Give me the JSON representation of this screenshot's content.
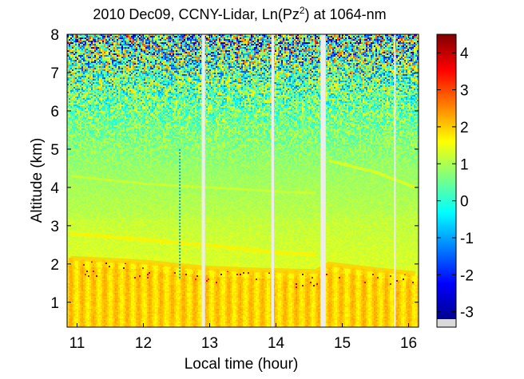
{
  "chart_data": {
    "type": "heatmap",
    "title_main": "2010 Dec09, CCNY-Lidar, Ln(Pz",
    "title_sup": "2",
    "title_tail": ") at 1064-nm",
    "xlabel": "Local time (hour)",
    "ylabel": "Altitude (km)",
    "xlim": [
      10.85,
      16.15
    ],
    "ylim": [
      0.35,
      8
    ],
    "x_ticks": [
      11,
      12,
      13,
      14,
      15,
      16
    ],
    "y_ticks": [
      1,
      2,
      3,
      4,
      5,
      6,
      7,
      8
    ],
    "colorbar": {
      "range": [
        -3.2,
        4.5
      ],
      "ticks": [
        -3,
        -2,
        -1,
        0,
        1,
        2,
        3,
        4
      ],
      "colormap": "jet",
      "underflow_color": "#d9d9d9"
    },
    "data_gaps_hours": [
      [
        12.88,
        12.93
      ],
      [
        13.93,
        13.97
      ],
      [
        14.67,
        14.75
      ],
      [
        15.78,
        15.8
      ]
    ],
    "features": {
      "boundary_layer_top_km": {
        "x": [
          10.9,
          12.0,
          12.9,
          13.5,
          14.6,
          14.8,
          15.5,
          16.1
        ],
        "y": [
          2.15,
          2.05,
          1.9,
          1.85,
          1.8,
          2.0,
          1.85,
          1.75
        ]
      },
      "upper_aerosol_layer_km": {
        "x": [
          10.9,
          12.9,
          14.0,
          14.6
        ],
        "y": [
          2.8,
          2.5,
          2.3,
          2.25
        ]
      },
      "faint_layer_km": {
        "x": [
          10.9,
          12.0,
          13.0,
          14.0,
          14.6
        ],
        "y": [
          4.3,
          4.1,
          4.0,
          3.9,
          3.85
        ]
      },
      "late_layer_km": {
        "x": [
          14.8,
          15.5,
          16.1
        ],
        "y": [
          4.7,
          4.4,
          4.0
        ]
      },
      "cloud_streak": {
        "x": 12.55,
        "y_range": [
          1.6,
          5.0
        ]
      }
    }
  }
}
